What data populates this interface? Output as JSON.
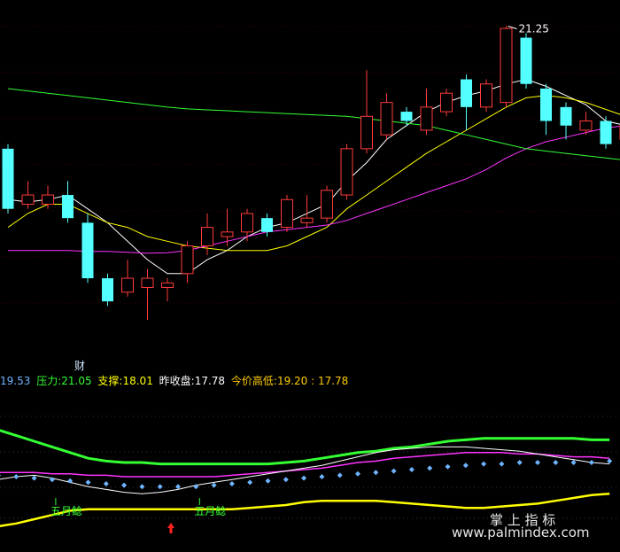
{
  "info_bar": {
    "first_value": "19.53",
    "pressure_label": "压力:",
    "pressure_value": "21.05",
    "support_label": "支撑:",
    "support_value": "18.01",
    "prev_close_label": "昨收盘:",
    "prev_close_value": "17.78",
    "today_hl_label": "今价高低:",
    "today_hl_value": "19.20 : 17.78"
  },
  "watermark": {
    "line1": "掌 上 指 标",
    "line2": "www.palmindex.com"
  },
  "colors": {
    "up": "#ff3b3b",
    "down": "#54ffff",
    "ma_white": "#ffffff",
    "ma_yellow": "#ffff00",
    "ma_magenta": "#ff33ff",
    "ma_green": "#33ff33",
    "sub_green": "#33ff33",
    "sub_yellow": "#ffff00",
    "sub_magenta": "#ff33ff",
    "sub_white": "#ffffff",
    "diamond": "#6fb4ff",
    "signal_green": "#33ff33",
    "arrow_red": "#ff2222"
  },
  "chart_data": [
    {
      "type": "candlestick",
      "ylim": [
        14.0,
        21.7
      ],
      "high_annotation": "21.25",
      "event_marker": "财",
      "candles": [
        {
          "o": 18.6,
          "c": 17.3,
          "h": 18.7,
          "l": 17.2
        },
        {
          "o": 17.4,
          "c": 17.6,
          "h": 17.9,
          "l": 17.3
        },
        {
          "o": 17.4,
          "c": 17.6,
          "h": 17.8,
          "l": 17.3
        },
        {
          "o": 17.6,
          "c": 17.1,
          "h": 17.9,
          "l": 17.0
        },
        {
          "o": 17.0,
          "c": 15.8,
          "h": 17.2,
          "l": 15.7
        },
        {
          "o": 15.8,
          "c": 15.3,
          "h": 15.9,
          "l": 15.2
        },
        {
          "o": 15.5,
          "c": 15.8,
          "h": 16.2,
          "l": 15.4
        },
        {
          "o": 15.6,
          "c": 15.8,
          "h": 16.0,
          "l": 14.9
        },
        {
          "o": 15.6,
          "c": 15.7,
          "h": 15.8,
          "l": 15.3
        },
        {
          "o": 15.9,
          "c": 16.5,
          "h": 16.6,
          "l": 15.7
        },
        {
          "o": 16.5,
          "c": 16.9,
          "h": 17.2,
          "l": 16.3
        },
        {
          "o": 16.7,
          "c": 16.8,
          "h": 17.3,
          "l": 16.5
        },
        {
          "o": 16.8,
          "c": 17.2,
          "h": 17.3,
          "l": 16.6
        },
        {
          "o": 17.1,
          "c": 16.8,
          "h": 17.2,
          "l": 16.7
        },
        {
          "o": 16.9,
          "c": 17.5,
          "h": 17.6,
          "l": 16.8
        },
        {
          "o": 17.0,
          "c": 17.1,
          "h": 17.6,
          "l": 16.9
        },
        {
          "o": 17.1,
          "c": 17.7,
          "h": 17.8,
          "l": 17.0
        },
        {
          "o": 17.6,
          "c": 18.6,
          "h": 18.7,
          "l": 17.5
        },
        {
          "o": 18.6,
          "c": 19.3,
          "h": 20.3,
          "l": 18.5
        },
        {
          "o": 18.9,
          "c": 19.6,
          "h": 19.8,
          "l": 18.8
        },
        {
          "o": 19.4,
          "c": 19.2,
          "h": 19.5,
          "l": 19.1
        },
        {
          "o": 19.0,
          "c": 19.5,
          "h": 19.9,
          "l": 18.9
        },
        {
          "o": 19.4,
          "c": 19.8,
          "h": 19.9,
          "l": 19.3
        },
        {
          "o": 20.1,
          "c": 19.5,
          "h": 20.2,
          "l": 19.0
        },
        {
          "o": 19.5,
          "c": 20.0,
          "h": 20.1,
          "l": 19.4
        },
        {
          "o": 19.6,
          "c": 21.2,
          "h": 21.25,
          "l": 19.5
        },
        {
          "o": 21.0,
          "c": 20.0,
          "h": 21.1,
          "l": 19.9
        },
        {
          "o": 19.9,
          "c": 19.2,
          "h": 20.0,
          "l": 18.9
        },
        {
          "o": 19.5,
          "c": 19.1,
          "h": 19.6,
          "l": 18.8
        },
        {
          "o": 19.0,
          "c": 19.2,
          "h": 19.4,
          "l": 18.9
        },
        {
          "o": 19.2,
          "c": 18.7,
          "h": 19.3,
          "l": 18.6
        },
        {
          "o": 18.8,
          "c": 19.1,
          "h": 19.2,
          "l": 18.7
        },
        {
          "o": 19.1,
          "c": 18.1,
          "h": 19.2,
          "l": 18.0
        },
        {
          "o": 18.1,
          "c": 17.8,
          "h": 18.2,
          "l": 17.7
        },
        {
          "o": 17.7,
          "c": 17.7,
          "h": 18.0,
          "l": 17.6
        }
      ],
      "ma_lines": [
        {
          "color_key": "ma_white",
          "values": [
            17.5,
            17.45,
            17.5,
            17.6,
            17.3,
            17.0,
            16.6,
            16.2,
            15.9,
            15.9,
            16.2,
            16.4,
            16.7,
            16.9,
            17.0,
            17.2,
            17.4,
            17.9,
            18.3,
            18.8,
            19.1,
            19.4,
            19.6,
            19.75,
            19.85,
            20.0,
            20.1,
            19.95,
            19.75,
            19.55,
            19.2,
            19.1,
            18.9,
            18.6,
            18.3
          ]
        },
        {
          "color_key": "ma_yellow",
          "values": [
            16.9,
            17.2,
            17.4,
            17.4,
            17.2,
            17.0,
            16.9,
            16.7,
            16.6,
            16.5,
            16.45,
            16.4,
            16.4,
            16.4,
            16.5,
            16.7,
            16.9,
            17.3,
            17.6,
            17.9,
            18.2,
            18.5,
            18.75,
            19.0,
            19.25,
            19.5,
            19.7,
            19.75,
            19.7,
            19.6,
            19.45,
            19.3,
            19.1,
            18.95,
            18.8
          ]
        },
        {
          "color_key": "ma_magenta",
          "values": [
            16.4,
            16.4,
            16.4,
            16.4,
            16.38,
            16.38,
            16.36,
            16.34,
            16.35,
            16.4,
            16.5,
            16.6,
            16.7,
            16.8,
            16.85,
            16.9,
            16.95,
            17.05,
            17.2,
            17.35,
            17.5,
            17.65,
            17.8,
            17.95,
            18.15,
            18.4,
            18.6,
            18.75,
            18.85,
            18.95,
            19.05,
            19.1,
            19.15,
            19.15,
            19.2
          ]
        },
        {
          "color_key": "ma_green",
          "values": [
            19.9,
            19.85,
            19.8,
            19.75,
            19.7,
            19.65,
            19.6,
            19.55,
            19.5,
            19.46,
            19.44,
            19.42,
            19.4,
            19.38,
            19.36,
            19.34,
            19.32,
            19.3,
            19.25,
            19.2,
            19.15,
            19.1,
            19.0,
            18.9,
            18.8,
            18.7,
            18.6,
            18.55,
            18.5,
            18.45,
            18.4,
            18.35,
            18.3,
            18.3,
            18.2
          ]
        }
      ]
    },
    {
      "type": "line",
      "ylim": [
        0,
        100
      ],
      "signal_labels": [
        {
          "index": 3,
          "text": "五月鲶"
        },
        {
          "index": 11,
          "text": "五月鲶"
        }
      ],
      "arrow_index": 9,
      "series": [
        {
          "color_key": "sub_green",
          "width": 3,
          "values": [
            78,
            74,
            70,
            66,
            62,
            58,
            56,
            55,
            55,
            54,
            54,
            54,
            54,
            54,
            54,
            54,
            55,
            56,
            58,
            60,
            62,
            63,
            65,
            66,
            68,
            70,
            71,
            72,
            72,
            72,
            72,
            72,
            72,
            71,
            71
          ]
        },
        {
          "color_key": "sub_yellow",
          "width": 2.5,
          "values": [
            10,
            12,
            15,
            18,
            21,
            22,
            22,
            22,
            22,
            22,
            22,
            22,
            22,
            22,
            23,
            24,
            25,
            27,
            28,
            28,
            28,
            28,
            27,
            26,
            25,
            24,
            23,
            23,
            24,
            25,
            26,
            28,
            30,
            32,
            33
          ]
        },
        {
          "color_key": "sub_magenta",
          "width": 1.5,
          "values": [
            48,
            48,
            48,
            47,
            47,
            46,
            46,
            45,
            45,
            45,
            45,
            45,
            45,
            46,
            47,
            48,
            49,
            50,
            51,
            53,
            55,
            56,
            58,
            59,
            60,
            61,
            62,
            62,
            62,
            61,
            61,
            60,
            59,
            59,
            58
          ]
        },
        {
          "color_key": "sub_white",
          "width": 1,
          "values": [
            43,
            45,
            46,
            44,
            41,
            38,
            36,
            34,
            33,
            34,
            36,
            39,
            41,
            43,
            45,
            47,
            49,
            51,
            53,
            56,
            59,
            62,
            64,
            65,
            66,
            66,
            66,
            65,
            64,
            63,
            61,
            59,
            57,
            55,
            54
          ]
        },
        {
          "color_key": "diamond",
          "width": 0,
          "values": [
            46,
            45,
            44,
            43,
            42,
            41,
            40,
            39,
            38,
            38,
            38,
            38,
            39,
            40,
            41,
            42,
            43,
            44,
            45,
            46,
            47,
            48,
            49,
            50,
            51,
            52,
            53,
            54,
            54,
            55,
            55,
            55,
            55,
            55,
            56
          ]
        }
      ]
    }
  ]
}
